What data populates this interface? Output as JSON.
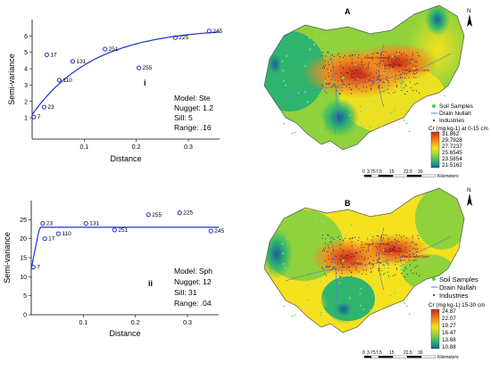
{
  "chart_data": [
    {
      "type": "scatter",
      "panel_label": "i",
      "xlabel": "Distance",
      "ylabel": "Semi-variance",
      "xlim": [
        0,
        0.36
      ],
      "ylim": [
        -0.3,
        7
      ],
      "xticks": [
        "0.1",
        "0.2",
        "0.3"
      ],
      "xtick_values": [
        0.1,
        0.2,
        0.3
      ],
      "yticks": [
        "1",
        "2",
        "3",
        "4",
        "5",
        "6"
      ],
      "ytick_values": [
        1,
        2,
        3,
        4,
        5,
        6
      ],
      "points": [
        {
          "x": 0.003,
          "y": 1.05,
          "label": "7"
        },
        {
          "x": 0.023,
          "y": 1.65,
          "label": "23"
        },
        {
          "x": 0.028,
          "y": 4.85,
          "label": "17"
        },
        {
          "x": 0.052,
          "y": 3.3,
          "label": "110"
        },
        {
          "x": 0.078,
          "y": 4.45,
          "label": "131"
        },
        {
          "x": 0.14,
          "y": 5.2,
          "label": "251"
        },
        {
          "x": 0.205,
          "y": 4.05,
          "label": "255"
        },
        {
          "x": 0.275,
          "y": 5.9,
          "label": "225"
        },
        {
          "x": 0.34,
          "y": 6.3,
          "label": "245"
        }
      ],
      "model": {
        "type": "Ste",
        "nugget": 1.2,
        "sill": 5,
        "range": 0.16
      },
      "model_text": [
        "Model: Ste",
        "Nugget: 1.2",
        "Sill: 5",
        "Range: .16"
      ]
    },
    {
      "type": "scatter",
      "panel_label": "ii",
      "xlabel": "Distance",
      "ylabel": "Semi-variance",
      "xlim": [
        0,
        0.36
      ],
      "ylim": [
        0,
        30
      ],
      "xticks": [
        "0.1",
        "0.2",
        "0.3"
      ],
      "xtick_values": [
        0.1,
        0.2,
        0.3
      ],
      "yticks": [
        "0",
        "5",
        "10",
        "15",
        "20",
        "25"
      ],
      "ytick_values": [
        0,
        5,
        10,
        15,
        20,
        25
      ],
      "points": [
        {
          "x": 0.004,
          "y": 12.5,
          "label": "7"
        },
        {
          "x": 0.022,
          "y": 24,
          "label": "23"
        },
        {
          "x": 0.026,
          "y": 20,
          "label": "17"
        },
        {
          "x": 0.052,
          "y": 21.3,
          "label": "110"
        },
        {
          "x": 0.105,
          "y": 24,
          "label": "131"
        },
        {
          "x": 0.16,
          "y": 22.3,
          "label": "251"
        },
        {
          "x": 0.225,
          "y": 26.3,
          "label": "255"
        },
        {
          "x": 0.285,
          "y": 26.8,
          "label": "225"
        },
        {
          "x": 0.345,
          "y": 22,
          "label": "245"
        }
      ],
      "model": {
        "type": "Sph",
        "nugget": 12,
        "sill": 31,
        "range": 0.04
      },
      "model_text": [
        "Model: Sph",
        "Nugget: 12",
        "Sill: 31",
        "Range: .04"
      ]
    }
  ],
  "maps": [
    {
      "title": "A",
      "north": "N",
      "legend": [
        "Soil Samples",
        "Drain Nullah",
        "Industries"
      ],
      "colorbar_title": "Cr (mg kg-1) at 0-15 cm",
      "colorbar_values": [
        "31.862",
        "29.7928",
        "27.7237",
        "25.6545",
        "23.5854",
        "21.5162"
      ],
      "scalebar_ticks": [
        "0",
        "3.75",
        "7.5",
        "15",
        "22.5",
        "30"
      ],
      "scalebar_unit": "Kilometers",
      "place_tags": [
        "Sohail Chemical",
        "Sultan Dyes",
        "Taj Mills",
        "Punjab and Dyes"
      ]
    },
    {
      "title": "B",
      "north": "N",
      "legend": [
        "Soil Samples",
        "Drain Nullah",
        "Industries"
      ],
      "colorbar_title": "Cr (mg kg-1) 15-30 cm",
      "colorbar_values": [
        "24.87",
        "22.07",
        "19.27",
        "16.47",
        "13.68",
        "10.88"
      ],
      "scalebar_ticks": [
        "0",
        "3.75",
        "7.5",
        "15",
        "22.5",
        "30"
      ],
      "scalebar_unit": "Kilometers",
      "place_tags": [
        "Sohail Chemical",
        "Sultan Dyes",
        "Taj Mills",
        "Punjab and Dyes"
      ]
    }
  ],
  "colors": {
    "series": "#1f2fd0",
    "ramp_A": [
      "#c8281e",
      "#f08c1e",
      "#f5e11e",
      "#8fd23c",
      "#2fb46e",
      "#1a5f9e"
    ],
    "ramp_B": [
      "#c8281e",
      "#f08c1e",
      "#f5e11e",
      "#8fd23c",
      "#2fb46e",
      "#1a5f9e"
    ],
    "samples": "#46d246",
    "drain": "#5a78c8",
    "industries": "#1a1a4a"
  }
}
